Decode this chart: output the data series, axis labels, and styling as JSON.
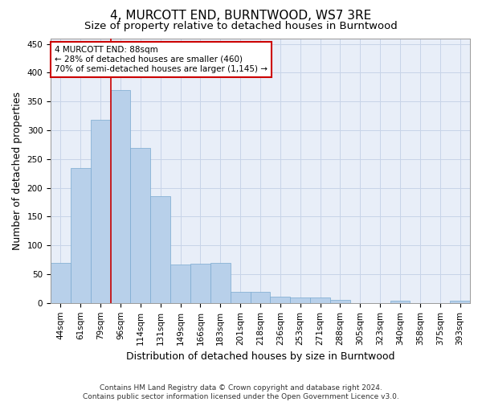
{
  "title": "4, MURCOTT END, BURNTWOOD, WS7 3RE",
  "subtitle": "Size of property relative to detached houses in Burntwood",
  "xlabel": "Distribution of detached houses by size in Burntwood",
  "ylabel": "Number of detached properties",
  "bar_labels": [
    "44sqm",
    "61sqm",
    "79sqm",
    "96sqm",
    "114sqm",
    "131sqm",
    "149sqm",
    "166sqm",
    "183sqm",
    "201sqm",
    "218sqm",
    "236sqm",
    "253sqm",
    "271sqm",
    "288sqm",
    "305sqm",
    "323sqm",
    "340sqm",
    "358sqm",
    "375sqm",
    "393sqm"
  ],
  "bar_values": [
    70,
    235,
    318,
    370,
    270,
    185,
    67,
    68,
    70,
    20,
    19,
    11,
    10,
    10,
    5,
    0,
    0,
    4,
    0,
    0,
    4
  ],
  "bar_color": "#b8d0ea",
  "bar_edge_color": "#7aaad0",
  "grid_color": "#c8d4e8",
  "background_color": "#e8eef8",
  "vline_x_index": 2.5,
  "vline_color": "#cc0000",
  "annotation_line1": "4 MURCOTT END: 88sqm",
  "annotation_line2": "← 28% of detached houses are smaller (460)",
  "annotation_line3": "70% of semi-detached houses are larger (1,145) →",
  "annotation_box_color": "#ffffff",
  "annotation_box_edge": "#cc0000",
  "ylim": [
    0,
    460
  ],
  "yticks": [
    0,
    50,
    100,
    150,
    200,
    250,
    300,
    350,
    400,
    450
  ],
  "footer": "Contains HM Land Registry data © Crown copyright and database right 2024.\nContains public sector information licensed under the Open Government Licence v3.0.",
  "title_fontsize": 11,
  "subtitle_fontsize": 9.5,
  "xlabel_fontsize": 9,
  "ylabel_fontsize": 9,
  "tick_fontsize": 7.5,
  "annotation_fontsize": 7.5,
  "footer_fontsize": 6.5
}
